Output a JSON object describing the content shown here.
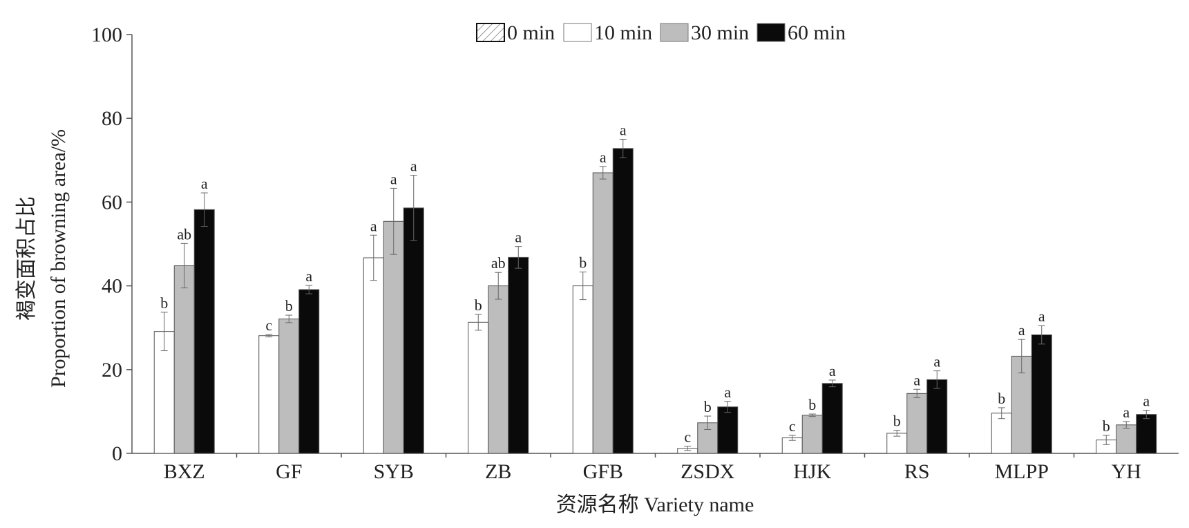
{
  "chart_data": {
    "type": "bar",
    "title": "",
    "xlabel": "资源名称 Variety name",
    "ylabel_cn": "褐变面积占比",
    "ylabel_en": "Proportion of browning area/%",
    "ylim": [
      0,
      100
    ],
    "yticks": [
      0,
      20,
      40,
      60,
      80,
      100
    ],
    "grid": false,
    "legend_position": "top-center",
    "categories": [
      "BXZ",
      "GF",
      "SYB",
      "ZB",
      "GFB",
      "ZSDX",
      "HJK",
      "RS",
      "MLPP",
      "YH"
    ],
    "series": [
      {
        "name": "0 min",
        "color": "#ffffff",
        "pattern": "hatch",
        "values": [
          0,
          0,
          0,
          0,
          0,
          0,
          0,
          0,
          0,
          0
        ],
        "errors": [
          0,
          0,
          0,
          0,
          0,
          0,
          0,
          0,
          0,
          0
        ],
        "labels": [
          "",
          "",
          "",
          "",
          "",
          "",
          "",
          "",
          "",
          ""
        ]
      },
      {
        "name": "10 min",
        "color": "#ffffff",
        "values": [
          29.1,
          28.1,
          46.7,
          31.3,
          40.0,
          1.2,
          3.7,
          4.8,
          9.6,
          3.2
        ],
        "errors": [
          4.6,
          0.3,
          5.4,
          1.9,
          3.3,
          0.5,
          0.6,
          0.7,
          1.3,
          1.1
        ],
        "labels": [
          "b",
          "c",
          "a",
          "b",
          "b",
          "c",
          "c",
          "b",
          "b",
          "b"
        ]
      },
      {
        "name": "30 min",
        "color": "#bdbdbd",
        "values": [
          44.8,
          32.1,
          55.4,
          40.0,
          67.0,
          7.3,
          9.1,
          14.3,
          23.2,
          6.8
        ],
        "errors": [
          5.3,
          0.9,
          7.9,
          3.2,
          1.5,
          1.6,
          0.3,
          1.0,
          4.0,
          0.8
        ],
        "labels": [
          "ab",
          "b",
          "a",
          "ab",
          "a",
          "b",
          "b",
          "a",
          "a",
          "a"
        ]
      },
      {
        "name": "60 min",
        "color": "#0a0a0a",
        "values": [
          58.2,
          39.1,
          58.6,
          46.8,
          72.8,
          11.1,
          16.7,
          17.6,
          28.3,
          9.3
        ],
        "errors": [
          4.0,
          1.0,
          7.8,
          2.6,
          2.2,
          1.3,
          0.8,
          2.1,
          2.2,
          1.0
        ],
        "labels": [
          "a",
          "a",
          "a",
          "a",
          "a",
          "a",
          "a",
          "a",
          "a",
          "a"
        ]
      }
    ]
  }
}
